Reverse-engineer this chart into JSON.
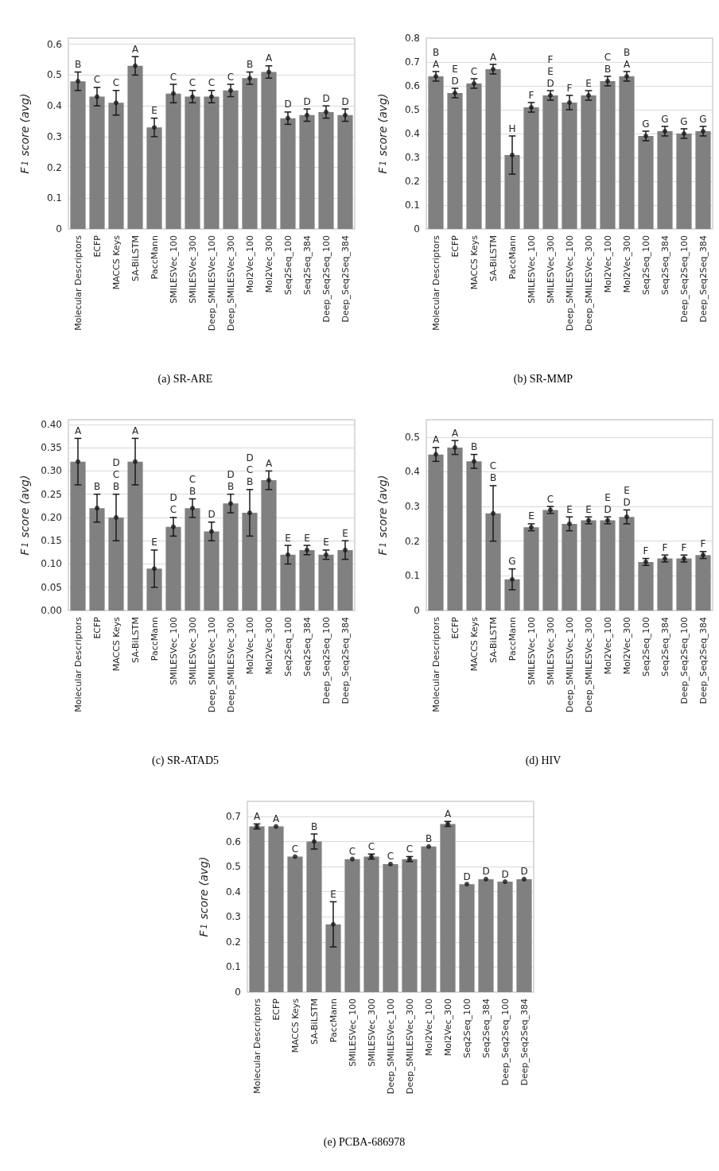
{
  "chart_data": [
    {
      "type": "bar",
      "title": "(a) SR-ARE",
      "ylabel": "F$_{1}$ score (avg)",
      "categories": [
        "Molecular Descriptors",
        "ECFP",
        "MACCS Keys",
        "SA-BiLSTM",
        "PaccMann",
        "SMILESVec_100",
        "SMILESVec_300",
        "Deep_SMILESVec_100",
        "Deep_SMILESVec_300",
        "Mol2Vec_100",
        "Mol2Vec_300",
        "Seq2Seq_100",
        "Seq2Seq_384",
        "Deep_Seq2Seq_100",
        "Deep_Seq2Seq_384"
      ],
      "series": [
        {
          "color": "#808080",
          "values": [
            0.48,
            0.43,
            0.41,
            0.53,
            0.33,
            0.44,
            0.43,
            0.43,
            0.45,
            0.49,
            0.51,
            0.36,
            0.37,
            0.38,
            0.37
          ],
          "errors": [
            0.03,
            0.03,
            0.04,
            0.03,
            0.03,
            0.03,
            0.02,
            0.02,
            0.02,
            0.02,
            0.02,
            0.02,
            0.02,
            0.02,
            0.02
          ]
        },
        {
          "type": "scatter",
          "color": "#1a1a1a",
          "x": [
            "Molecular Descriptors",
            "ECFP",
            "MACCS Keys",
            "SA-BiLSTM",
            "PaccMann",
            "SMILESVec_100",
            "SMILESVec_300",
            "Deep_SMILESVec_100",
            "Deep_SMILESVec_300",
            "Mol2Vec_100",
            "Mol2Vec_300",
            "Seq2Seq_100",
            "Seq2Seq_384",
            "Deep_Seq2Seq_100",
            "Deep_Seq2Seq_384"
          ],
          "values": [
            0.48,
            0.43,
            0.41,
            0.53,
            0.33,
            0.44,
            0.43,
            0.43,
            0.45,
            0.49,
            0.51,
            0.36,
            0.37,
            0.38,
            0.37
          ]
        }
      ],
      "ylim": [
        0,
        0.62
      ],
      "yticks": [
        0,
        0.1,
        0.2,
        0.3,
        0.4,
        0.5,
        0.6
      ],
      "grid": "y",
      "marker": "circle",
      "annotations": [
        {
          "text": "B",
          "x": "Molecular Descriptors",
          "y": 0.51
        },
        {
          "text": "C",
          "x": "ECFP",
          "y": 0.46
        },
        {
          "text": "C",
          "x": "MACCS Keys",
          "y": 0.45
        },
        {
          "text": "A",
          "x": "SA-BiLSTM",
          "y": 0.56
        },
        {
          "text": "E",
          "x": "PaccMann",
          "y": 0.36
        },
        {
          "text": "C",
          "x": "SMILESVec_100",
          "y": 0.47
        },
        {
          "text": "C",
          "x": "SMILESVec_300",
          "y": 0.45
        },
        {
          "text": "C",
          "x": "Deep_SMILESVec_100",
          "y": 0.45
        },
        {
          "text": "C",
          "x": "Deep_SMILESVec_300",
          "y": 0.47
        },
        {
          "text": "B",
          "x": "Mol2Vec_100",
          "y": 0.51
        },
        {
          "text": "A",
          "x": "Mol2Vec_300",
          "y": 0.53
        },
        {
          "text": "D",
          "x": "Seq2Seq_100",
          "y": 0.38
        },
        {
          "text": "D",
          "x": "Seq2Seq_384",
          "y": 0.39
        },
        {
          "text": "D",
          "x": "Deep_Seq2Seq_100",
          "y": 0.4
        },
        {
          "text": "D",
          "x": "Deep_Seq2Seq_384",
          "y": 0.39
        }
      ]
    },
    {
      "type": "bar",
      "title": "(b) SR-MMP",
      "ylabel": "F$_{1}$ score (avg)",
      "categories": [
        "Molecular Descriptors",
        "ECFP",
        "MACCS Keys",
        "SA-BiLSTM",
        "PaccMann",
        "SMILESVec_100",
        "SMILESVec_300",
        "Deep_SMILESVec_100",
        "Deep_SMILESVec_300",
        "Mol2Vec_100",
        "Mol2Vec_300",
        "Seq2Seq_100",
        "Seq2Seq_384",
        "Deep_Seq2Seq_100",
        "Deep_Seq2Seq_384"
      ],
      "series": [
        {
          "color": "#808080",
          "values": [
            0.64,
            0.57,
            0.61,
            0.67,
            0.31,
            0.51,
            0.56,
            0.53,
            0.56,
            0.62,
            0.64,
            0.39,
            0.41,
            0.4,
            0.41
          ],
          "errors": [
            0.02,
            0.02,
            0.02,
            0.02,
            0.08,
            0.02,
            0.02,
            0.03,
            0.02,
            0.02,
            0.02,
            0.02,
            0.02,
            0.02,
            0.02
          ]
        },
        {
          "type": "scatter",
          "color": "#1a1a1a",
          "x": [
            "Molecular Descriptors",
            "ECFP",
            "MACCS Keys",
            "SA-BiLSTM",
            "PaccMann",
            "SMILESVec_100",
            "SMILESVec_300",
            "Deep_SMILESVec_100",
            "Deep_SMILESVec_300",
            "Mol2Vec_100",
            "Mol2Vec_300",
            "Seq2Seq_100",
            "Seq2Seq_384",
            "Deep_Seq2Seq_100",
            "Deep_Seq2Seq_384"
          ],
          "values": [
            0.64,
            0.57,
            0.61,
            0.67,
            0.31,
            0.51,
            0.56,
            0.53,
            0.56,
            0.62,
            0.64,
            0.39,
            0.41,
            0.4,
            0.41
          ]
        }
      ],
      "ylim": [
        0,
        0.8
      ],
      "yticks": [
        0,
        0.1,
        0.2,
        0.3,
        0.4,
        0.5,
        0.6,
        0.7,
        0.8
      ],
      "grid": "y",
      "marker": "circle",
      "annotations": [
        {
          "text": "B\nA",
          "x": "Molecular Descriptors",
          "y": 0.66
        },
        {
          "text": "E\nD",
          "x": "ECFP",
          "y": 0.59
        },
        {
          "text": "C",
          "x": "MACCS Keys",
          "y": 0.63
        },
        {
          "text": "A",
          "x": "SA-BiLSTM",
          "y": 0.69
        },
        {
          "text": "H",
          "x": "PaccMann",
          "y": 0.39
        },
        {
          "text": "F",
          "x": "SMILESVec_100",
          "y": 0.53
        },
        {
          "text": "F\nE\nD",
          "x": "SMILESVec_300",
          "y": 0.58
        },
        {
          "text": "F",
          "x": "Deep_SMILESVec_100",
          "y": 0.56
        },
        {
          "text": "E",
          "x": "Deep_SMILESVec_300",
          "y": 0.58
        },
        {
          "text": "C\nB",
          "x": "Mol2Vec_100",
          "y": 0.64
        },
        {
          "text": "B\nA",
          "x": "Mol2Vec_300",
          "y": 0.66
        },
        {
          "text": "G",
          "x": "Seq2Seq_100",
          "y": 0.41
        },
        {
          "text": "G",
          "x": "Seq2Seq_384",
          "y": 0.43
        },
        {
          "text": "G",
          "x": "Deep_Seq2Seq_100",
          "y": 0.42
        },
        {
          "text": "G",
          "x": "Deep_Seq2Seq_384",
          "y": 0.43
        }
      ]
    },
    {
      "type": "bar",
      "title": "(c) SR-ATAD5",
      "ylabel": "F$_{1}$ score (avg)",
      "categories": [
        "Molecular Descriptors",
        "ECFP",
        "MACCS Keys",
        "SA-BiLSTM",
        "PaccMann",
        "SMILESVec_100",
        "SMILESVec_300",
        "Deep_SMILESVec_100",
        "Deep_SMILESVec_300",
        "Mol2Vec_100",
        "Mol2Vec_300",
        "Seq2Seq_100",
        "Seq2Seq_384",
        "Deep_Seq2Seq_100",
        "Deep_Seq2Seq_384"
      ],
      "series": [
        {
          "color": "#808080",
          "values": [
            0.32,
            0.22,
            0.2,
            0.32,
            0.09,
            0.18,
            0.22,
            0.17,
            0.23,
            0.21,
            0.28,
            0.12,
            0.13,
            0.12,
            0.13
          ],
          "errors": [
            0.05,
            0.03,
            0.05,
            0.05,
            0.04,
            0.02,
            0.02,
            0.02,
            0.02,
            0.05,
            0.02,
            0.02,
            0.01,
            0.01,
            0.02
          ]
        },
        {
          "type": "scatter",
          "color": "#1a1a1a",
          "x": [
            "Molecular Descriptors",
            "ECFP",
            "MACCS Keys",
            "SA-BiLSTM",
            "PaccMann",
            "SMILESVec_100",
            "SMILESVec_300",
            "Deep_SMILESVec_100",
            "Deep_SMILESVec_300",
            "Mol2Vec_100",
            "Mol2Vec_300",
            "Seq2Seq_100",
            "Seq2Seq_384",
            "Deep_Seq2Seq_100",
            "Deep_Seq2Seq_384"
          ],
          "values": [
            0.32,
            0.22,
            0.2,
            0.32,
            0.09,
            0.18,
            0.22,
            0.17,
            0.23,
            0.21,
            0.28,
            0.12,
            0.13,
            0.12,
            0.13
          ]
        }
      ],
      "ylim": [
        0,
        0.41
      ],
      "yticks": [
        {
          "value": 0,
          "label": "0.00"
        },
        {
          "value": 0.05,
          "label": "0.05"
        },
        {
          "value": 0.1,
          "label": "0.10"
        },
        {
          "value": 0.15,
          "label": "0.15"
        },
        {
          "value": 0.2,
          "label": "0.20"
        },
        {
          "value": 0.25,
          "label": "0.25"
        },
        {
          "value": 0.3,
          "label": "0.30"
        },
        {
          "value": 0.35,
          "label": "0.35"
        },
        {
          "value": 0.4,
          "label": "0.40"
        }
      ],
      "grid": "y",
      "marker": "circle",
      "annotations": [
        {
          "text": "A",
          "x": "Molecular Descriptors",
          "y": 0.37
        },
        {
          "text": "B",
          "x": "ECFP",
          "y": 0.25
        },
        {
          "text": "D\nC\nB",
          "x": "MACCS Keys",
          "y": 0.25
        },
        {
          "text": "A",
          "x": "SA-BiLSTM",
          "y": 0.37
        },
        {
          "text": "E",
          "x": "PaccMann",
          "y": 0.13
        },
        {
          "text": "D\nC",
          "x": "SMILESVec_100",
          "y": 0.2
        },
        {
          "text": "C\nB",
          "x": "SMILESVec_300",
          "y": 0.24
        },
        {
          "text": "D",
          "x": "Deep_SMILESVec_100",
          "y": 0.19
        },
        {
          "text": "D\nB",
          "x": "Deep_SMILESVec_300",
          "y": 0.25
        },
        {
          "text": "D\nC\nB",
          "x": "Mol2Vec_100",
          "y": 0.26
        },
        {
          "text": "A",
          "x": "Mol2Vec_300",
          "y": 0.3
        },
        {
          "text": "E",
          "x": "Seq2Seq_100",
          "y": 0.14
        },
        {
          "text": "E",
          "x": "Seq2Seq_384",
          "y": 0.14
        },
        {
          "text": "E",
          "x": "Deep_Seq2Seq_100",
          "y": 0.13
        },
        {
          "text": "E",
          "x": "Deep_Seq2Seq_384",
          "y": 0.15
        }
      ]
    },
    {
      "type": "bar",
      "title": "(d) HIV",
      "ylabel": "F$_{1}$ score (avg)",
      "categories": [
        "Molecular Descriptors",
        "ECFP",
        "MACCS Keys",
        "SA-BiLSTM",
        "PaccMann",
        "SMILESVec_100",
        "SMILESVec_300",
        "Deep_SMILESVec_100",
        "Deep_SMILESVec_300",
        "Mol2Vec_100",
        "Mol2Vec_300",
        "Seq2Seq_100",
        "Seq2Seq_384",
        "Deep_Seq2Seq_100",
        "Deep_Seq2Seq_384"
      ],
      "series": [
        {
          "color": "#808080",
          "values": [
            0.45,
            0.47,
            0.43,
            0.28,
            0.09,
            0.24,
            0.29,
            0.25,
            0.26,
            0.26,
            0.27,
            0.14,
            0.15,
            0.15,
            0.16
          ],
          "errors": [
            0.02,
            0.02,
            0.02,
            0.08,
            0.03,
            0.01,
            0.01,
            0.02,
            0.01,
            0.01,
            0.02,
            0.01,
            0.01,
            0.01,
            0.01
          ]
        },
        {
          "type": "scatter",
          "color": "#1a1a1a",
          "x": [
            "Molecular Descriptors",
            "ECFP",
            "MACCS Keys",
            "SA-BiLSTM",
            "PaccMann",
            "SMILESVec_100",
            "SMILESVec_300",
            "Deep_SMILESVec_100",
            "Deep_SMILESVec_300",
            "Mol2Vec_100",
            "Mol2Vec_300",
            "Seq2Seq_100",
            "Seq2Seq_384",
            "Deep_Seq2Seq_100",
            "Deep_Seq2Seq_384"
          ],
          "values": [
            0.45,
            0.47,
            0.43,
            0.28,
            0.09,
            0.24,
            0.29,
            0.25,
            0.26,
            0.26,
            0.27,
            0.14,
            0.15,
            0.15,
            0.16
          ]
        }
      ],
      "ylim": [
        0,
        0.55
      ],
      "yticks": [
        0,
        0.1,
        0.2,
        0.3,
        0.4,
        0.5
      ],
      "grid": "y",
      "marker": "circle",
      "annotations": [
        {
          "text": "A",
          "x": "Molecular Descriptors",
          "y": 0.47
        },
        {
          "text": "A",
          "x": "ECFP",
          "y": 0.49
        },
        {
          "text": "B",
          "x": "MACCS Keys",
          "y": 0.45
        },
        {
          "text": "C\nB",
          "x": "SA-BiLSTM",
          "y": 0.36
        },
        {
          "text": "G",
          "x": "PaccMann",
          "y": 0.12
        },
        {
          "text": "E",
          "x": "SMILESVec_100",
          "y": 0.25
        },
        {
          "text": "C",
          "x": "SMILESVec_300",
          "y": 0.3
        },
        {
          "text": "E",
          "x": "Deep_SMILESVec_100",
          "y": 0.27
        },
        {
          "text": "E",
          "x": "Deep_SMILESVec_300",
          "y": 0.27
        },
        {
          "text": "E\nD",
          "x": "Mol2Vec_100",
          "y": 0.27
        },
        {
          "text": "E\nD",
          "x": "Mol2Vec_300",
          "y": 0.29
        },
        {
          "text": "F",
          "x": "Seq2Seq_100",
          "y": 0.15
        },
        {
          "text": "F",
          "x": "Seq2Seq_384",
          "y": 0.16
        },
        {
          "text": "F",
          "x": "Deep_Seq2Seq_100",
          "y": 0.16
        },
        {
          "text": "F",
          "x": "Deep_Seq2Seq_384",
          "y": 0.17
        }
      ]
    },
    {
      "type": "bar",
      "title": "(e) PCBA-686978",
      "ylabel": "F$_{1}$ score (avg)",
      "categories": [
        "Molecular Descriptors",
        "ECFP",
        "MACCS Keys",
        "SA-BiLSTM",
        "PaccMann",
        "SMILESVec_100",
        "SMILESVec_300",
        "Deep_SMILESVec_100",
        "Deep_SMILESVec_300",
        "Mol2Vec_100",
        "Mol2Vec_300",
        "Seq2Seq_100",
        "Seq2Seq_384",
        "Deep_Seq2Seq_100",
        "Deep_Seq2Seq_384"
      ],
      "series": [
        {
          "color": "#808080",
          "values": [
            0.66,
            0.66,
            0.54,
            0.6,
            0.27,
            0.53,
            0.54,
            0.51,
            0.53,
            0.58,
            0.67,
            0.43,
            0.45,
            0.44,
            0.45
          ],
          "errors": [
            0.01,
            null,
            null,
            0.03,
            0.09,
            null,
            0.01,
            null,
            0.01,
            null,
            0.01,
            null,
            null,
            null,
            null
          ]
        },
        {
          "type": "scatter",
          "color": "#1a1a1a",
          "x": [
            "Molecular Descriptors",
            "ECFP",
            "MACCS Keys",
            "SA-BiLSTM",
            "PaccMann",
            "SMILESVec_100",
            "SMILESVec_300",
            "Deep_SMILESVec_100",
            "Deep_SMILESVec_300",
            "Mol2Vec_100",
            "Mol2Vec_300",
            "Seq2Seq_100",
            "Seq2Seq_384",
            "Deep_Seq2Seq_100",
            "Deep_Seq2Seq_384"
          ],
          "values": [
            0.66,
            0.66,
            0.54,
            0.6,
            0.27,
            0.53,
            0.54,
            0.51,
            0.53,
            0.58,
            0.67,
            0.43,
            0.45,
            0.44,
            0.45
          ]
        }
      ],
      "ylim": [
        0,
        0.76
      ],
      "yticks": [
        0,
        0.1,
        0.2,
        0.3,
        0.4,
        0.5,
        0.6,
        0.7
      ],
      "grid": "y",
      "marker": "circle",
      "annotations": [
        {
          "text": "A",
          "x": "Molecular Descriptors",
          "y": 0.67
        },
        {
          "text": "A",
          "x": "ECFP",
          "y": 0.66
        },
        {
          "text": "C",
          "x": "MACCS Keys",
          "y": 0.54
        },
        {
          "text": "B",
          "x": "SA-BiLSTM",
          "y": 0.63
        },
        {
          "text": "E",
          "x": "PaccMann",
          "y": 0.36
        },
        {
          "text": "C",
          "x": "SMILESVec_100",
          "y": 0.53
        },
        {
          "text": "C",
          "x": "SMILESVec_300",
          "y": 0.55
        },
        {
          "text": "C",
          "x": "Deep_SMILESVec_100",
          "y": 0.51
        },
        {
          "text": "C",
          "x": "Deep_SMILESVec_300",
          "y": 0.54
        },
        {
          "text": "B",
          "x": "Mol2Vec_100",
          "y": 0.58
        },
        {
          "text": "A",
          "x": "Mol2Vec_300",
          "y": 0.68
        },
        {
          "text": "D",
          "x": "Seq2Seq_100",
          "y": 0.43
        },
        {
          "text": "D",
          "x": "Seq2Seq_384",
          "y": 0.45
        },
        {
          "text": "D",
          "x": "Deep_Seq2Seq_100",
          "y": 0.44
        },
        {
          "text": "D",
          "x": "Deep_Seq2Seq_384",
          "y": 0.45
        }
      ]
    }
  ]
}
